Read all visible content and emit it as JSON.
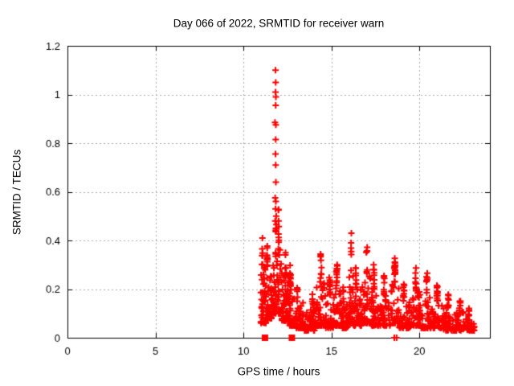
{
  "chart_data": {
    "type": "scatter",
    "title": "Day 066 of 2022, SRMTID for receiver warn",
    "xlabel": "GPS time / hours",
    "ylabel": "SRMTID / TECUs",
    "xlim": [
      0,
      24
    ],
    "ylim": [
      0,
      1.2
    ],
    "xticks": [
      0,
      5,
      10,
      15,
      20
    ],
    "xtick_labels": [
      "0",
      "5",
      "10",
      "15",
      "20"
    ],
    "yticks": [
      0,
      0.2,
      0.4,
      0.6,
      0.8,
      1,
      1.2
    ],
    "ytick_labels": [
      "0",
      "0.2",
      "0.4",
      "0.6",
      "0.8",
      "1",
      "1.2"
    ],
    "grid": true,
    "grid_color": "#ababab",
    "legend_position": "none",
    "marker": "plus",
    "marker_color": "#ff0000",
    "series": [
      {
        "name": "srmtid-points",
        "marker": "plus",
        "spike_points": [
          [
            11.82,
            1.1
          ],
          [
            11.83,
            1.05
          ],
          [
            11.82,
            1.01
          ],
          [
            11.84,
            0.99
          ],
          [
            11.83,
            0.955
          ],
          [
            11.79,
            0.885
          ],
          [
            11.84,
            0.875
          ],
          [
            11.83,
            0.815
          ],
          [
            11.82,
            0.755
          ],
          [
            11.83,
            0.71
          ],
          [
            11.84,
            0.64
          ],
          [
            11.8,
            0.575
          ],
          [
            11.84,
            0.56
          ],
          [
            11.82,
            0.53
          ],
          [
            11.86,
            0.5
          ],
          [
            11.8,
            0.48
          ],
          [
            11.87,
            0.465
          ],
          [
            11.84,
            0.45
          ]
        ],
        "zero_points": [
          [
            18.57,
            0
          ],
          [
            18.7,
            0
          ]
        ],
        "cluster_format": [
          "x_start_hours",
          "x_end_hours",
          "n_points",
          "y_min",
          "y_max",
          "peak_x_fraction"
        ],
        "noise_clusters": [
          [
            10.98,
            11.28,
            48,
            0.06,
            0.44,
            0.3
          ],
          [
            11.28,
            11.62,
            55,
            0.08,
            0.38,
            0.2
          ],
          [
            11.62,
            11.88,
            32,
            0.1,
            0.45,
            0.8
          ],
          [
            11.88,
            12.18,
            42,
            0.1,
            0.56,
            0.4
          ],
          [
            12.18,
            12.55,
            55,
            0.07,
            0.37,
            0.6
          ],
          [
            12.55,
            13.0,
            55,
            0.05,
            0.3,
            0.25
          ],
          [
            13.0,
            13.45,
            45,
            0.04,
            0.22,
            0.1
          ],
          [
            13.45,
            14.15,
            60,
            0.03,
            0.18,
            0.7
          ],
          [
            14.15,
            14.65,
            50,
            0.05,
            0.35,
            0.5
          ],
          [
            14.65,
            15.15,
            48,
            0.04,
            0.25,
            0.5
          ],
          [
            15.15,
            15.55,
            40,
            0.05,
            0.33,
            0.4
          ],
          [
            15.55,
            16.0,
            42,
            0.04,
            0.22,
            0.3
          ],
          [
            16.0,
            16.25,
            30,
            0.06,
            0.44,
            0.45
          ],
          [
            16.25,
            16.7,
            45,
            0.05,
            0.3,
            0.3
          ],
          [
            16.7,
            17.25,
            50,
            0.06,
            0.4,
            0.55
          ],
          [
            17.25,
            17.7,
            45,
            0.05,
            0.3,
            0.35
          ],
          [
            17.7,
            18.35,
            50,
            0.05,
            0.26,
            0.45
          ],
          [
            18.35,
            18.85,
            46,
            0.06,
            0.34,
            0.5
          ],
          [
            18.85,
            19.5,
            50,
            0.04,
            0.22,
            0.4
          ],
          [
            19.5,
            20.0,
            45,
            0.05,
            0.3,
            0.55
          ],
          [
            20.0,
            20.7,
            50,
            0.04,
            0.28,
            0.6
          ],
          [
            20.7,
            21.3,
            45,
            0.04,
            0.22,
            0.5
          ],
          [
            21.3,
            22.0,
            50,
            0.03,
            0.18,
            0.45
          ],
          [
            22.0,
            22.6,
            45,
            0.03,
            0.16,
            0.5
          ],
          [
            22.6,
            23.12,
            40,
            0.03,
            0.13,
            0.4
          ]
        ]
      },
      {
        "name": "baseline-flags",
        "marker": "filled-square",
        "points": [
          [
            11.22,
            0
          ],
          [
            12.75,
            0
          ]
        ]
      }
    ]
  }
}
